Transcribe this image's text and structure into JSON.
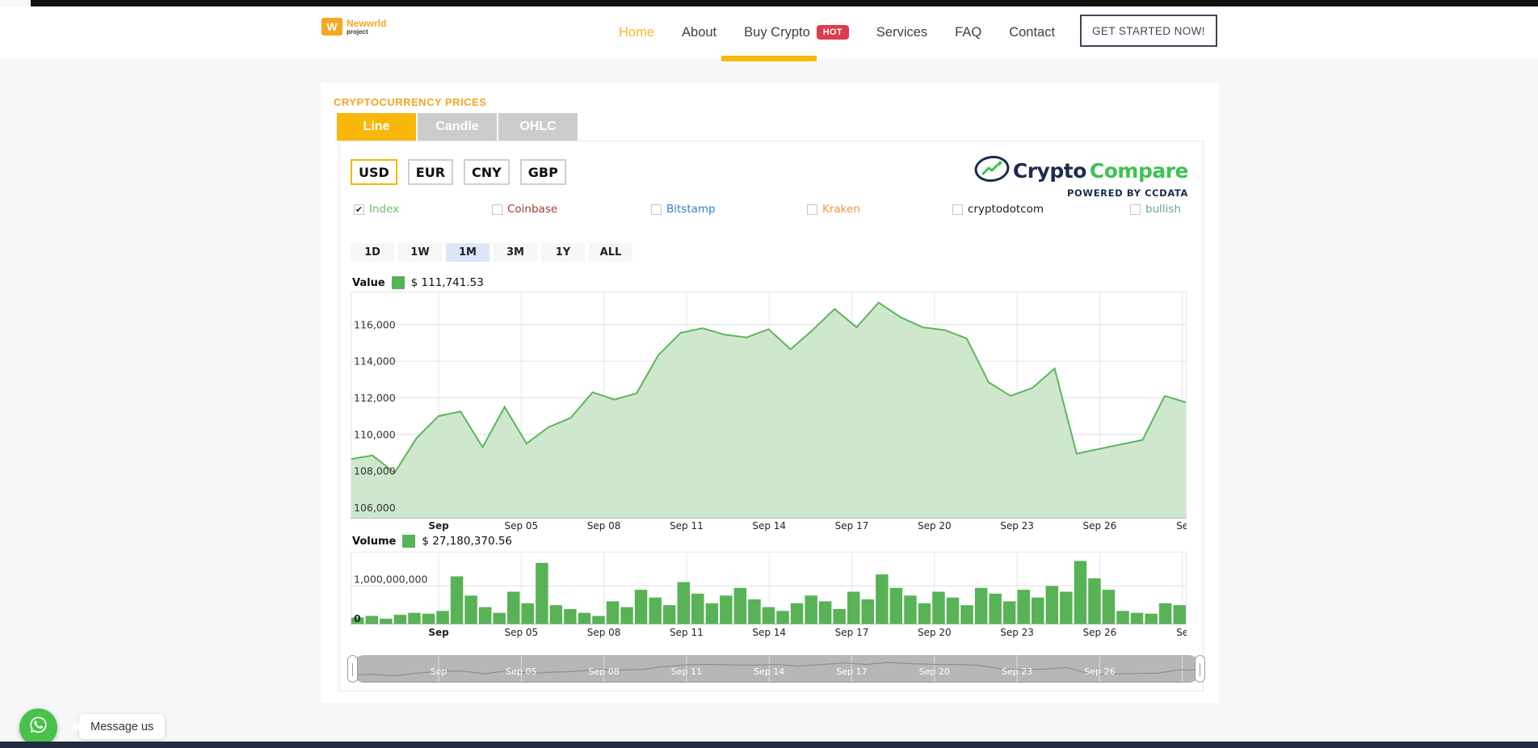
{
  "navbar": {
    "logo": {
      "title": "Newwrld",
      "subtitle": "project",
      "icon_letter": "W"
    },
    "items": [
      {
        "label": "Home",
        "active": true
      },
      {
        "label": "About",
        "active": false
      },
      {
        "label": "Buy Crypto",
        "active": false,
        "badge": "HOT"
      },
      {
        "label": "Services",
        "active": false
      },
      {
        "label": "FAQ",
        "active": false
      },
      {
        "label": "Contact",
        "active": false
      }
    ],
    "cta_label": "GET STARTED NOW!",
    "accent_color": "#f5b82e",
    "badge_color": "#dc3c4d"
  },
  "widget": {
    "heading": "CRYPTOCURRENCY PRICES",
    "chart_tabs": [
      {
        "label": "Line",
        "active": true
      },
      {
        "label": "Candle",
        "active": false
      },
      {
        "label": "OHLC",
        "active": false
      }
    ],
    "currencies": [
      {
        "label": "USD",
        "active": true
      },
      {
        "label": "EUR",
        "active": false
      },
      {
        "label": "CNY",
        "active": false
      },
      {
        "label": "GBP",
        "active": false
      }
    ],
    "provider": {
      "name_primary": "Crypto",
      "name_secondary": "Compare",
      "tagline": "POWERED BY CCDATA",
      "navy": "#1d2b4f",
      "green": "#3fc252"
    },
    "exchanges": [
      {
        "label": "Index",
        "checked": true,
        "color": "#6cbf6c"
      },
      {
        "label": "Coinbase",
        "checked": false,
        "color": "#9e3b2e"
      },
      {
        "label": "Bitstamp",
        "checked": false,
        "color": "#2f7ecc"
      },
      {
        "label": "Kraken",
        "checked": false,
        "color": "#f2923f"
      },
      {
        "label": "cryptodotcom",
        "checked": false,
        "color": "#1a1a1a"
      },
      {
        "label": "bullish",
        "checked": false,
        "color": "#66a793"
      }
    ],
    "ranges": [
      {
        "label": "1D",
        "active": false
      },
      {
        "label": "1W",
        "active": false
      },
      {
        "label": "1M",
        "active": true
      },
      {
        "label": "3M",
        "active": false
      },
      {
        "label": "1Y",
        "active": false
      },
      {
        "label": "ALL",
        "active": false
      }
    ],
    "value_legend": {
      "label": "Value",
      "value": "$ 111,741.53",
      "swatch": "#57b356"
    },
    "volume_legend": {
      "label": "Volume",
      "value": "$ 27,180,370.56",
      "swatch": "#57b356"
    }
  },
  "chart_data": [
    {
      "type": "area",
      "title": "Value",
      "currency": "USD",
      "latest_value": 111741.53,
      "ylim": [
        105400,
        117800
      ],
      "yticks": [
        106000,
        108000,
        110000,
        112000,
        114000,
        116000
      ],
      "x_labels": [
        "Sep",
        "Sep 05",
        "Sep 08",
        "Sep 11",
        "Sep 14",
        "Sep 17",
        "Sep 20",
        "Sep 23",
        "Sep 26",
        "Se"
      ],
      "line_color": "#5cb65c",
      "fill_color": "#cfe7cd",
      "grid": true,
      "values": [
        108650,
        108850,
        107900,
        109800,
        111000,
        111250,
        109300,
        111500,
        109500,
        110400,
        110900,
        112300,
        111900,
        112250,
        114350,
        115550,
        115800,
        115450,
        115300,
        115750,
        114650,
        115700,
        116850,
        115850,
        117200,
        116400,
        115850,
        115700,
        115250,
        112850,
        112100,
        112550,
        113600,
        108950,
        109200,
        109450,
        109700,
        112100,
        111741.53
      ]
    },
    {
      "type": "bar",
      "title": "Volume",
      "latest_value": 27180370.56,
      "ylim": [
        0,
        1890000000
      ],
      "yticks": [
        0,
        1000000000
      ],
      "x_labels": [
        "Sep",
        "Sep 05",
        "Sep 08",
        "Sep 11",
        "Sep 14",
        "Sep 17",
        "Sep 20",
        "Sep 23",
        "Sep 26",
        "Se"
      ],
      "bar_color": "#57b356",
      "grid": true,
      "values": [
        180000000,
        220000000,
        150000000,
        250000000,
        300000000,
        280000000,
        350000000,
        1250000000,
        750000000,
        450000000,
        300000000,
        850000000,
        550000000,
        1600000000,
        500000000,
        400000000,
        300000000,
        220000000,
        600000000,
        450000000,
        900000000,
        700000000,
        500000000,
        1100000000,
        800000000,
        550000000,
        750000000,
        950000000,
        650000000,
        450000000,
        350000000,
        550000000,
        750000000,
        600000000,
        400000000,
        850000000,
        650000000,
        1300000000,
        950000000,
        750000000,
        550000000,
        850000000,
        700000000,
        500000000,
        950000000,
        800000000,
        600000000,
        900000000,
        700000000,
        1000000000,
        850000000,
        1650000000,
        1200000000,
        900000000,
        350000000,
        300000000,
        280000000,
        550000000,
        500000000
      ]
    },
    {
      "type": "navigator",
      "x_labels": [
        "Sep",
        "Sep 05",
        "Sep 08",
        "Sep 11",
        "Sep 14",
        "Sep 17",
        "Sep 20",
        "Sep 23",
        "Sep 26"
      ],
      "source_series": "Value",
      "bg_color": "#b7b7b7",
      "line_color": "#8f8f8f"
    }
  ],
  "whatsapp": {
    "tooltip": "Message us",
    "color": "#4ac14b"
  }
}
